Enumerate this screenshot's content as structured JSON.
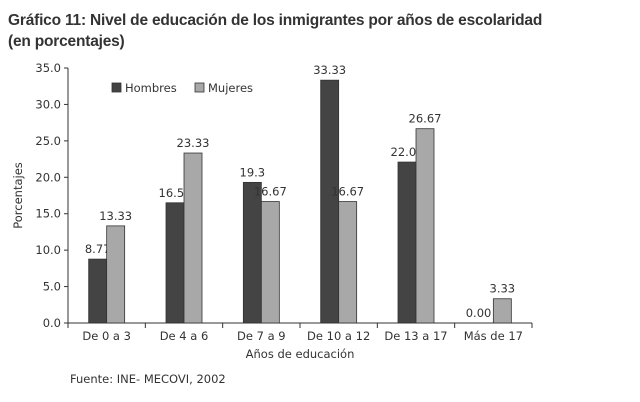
{
  "chart_data": {
    "type": "bar",
    "title_line1": "Gráfico 11:  Nivel de educación de los inmigrantes por años de escolaridad",
    "title_line2": "(en porcentajes)",
    "xlabel": "Años de educación",
    "ylabel": "Porcentajes",
    "ylim": [
      0,
      35
    ],
    "yticks": [
      "0.0",
      "5.0",
      "10.0",
      "15.0",
      "20.0",
      "25.0",
      "30.0",
      "35.0"
    ],
    "categories": [
      "De 0 a 3",
      "De 4 a 6",
      "De 7 a 9",
      "De 10 a 12",
      "De 13 a 17",
      "Más de 17"
    ],
    "series": [
      {
        "name": "Hombres",
        "color": "#444444",
        "values": [
          8.77,
          16.5,
          19.3,
          33.33,
          22.09,
          0.0
        ],
        "labels": [
          "8.77",
          "16.50",
          "19.3",
          "33.33",
          "22.09",
          "0.00"
        ]
      },
      {
        "name": "Mujeres",
        "color": "#a8a8a8",
        "values": [
          13.33,
          23.33,
          16.67,
          16.67,
          26.67,
          3.33
        ],
        "labels": [
          "13.33",
          "23.33",
          "16.67",
          "16.67",
          "26.67",
          "3.33"
        ]
      }
    ],
    "legend": "top-left",
    "grid": false,
    "source": "Fuente: INE- MECOVI, 2002"
  }
}
